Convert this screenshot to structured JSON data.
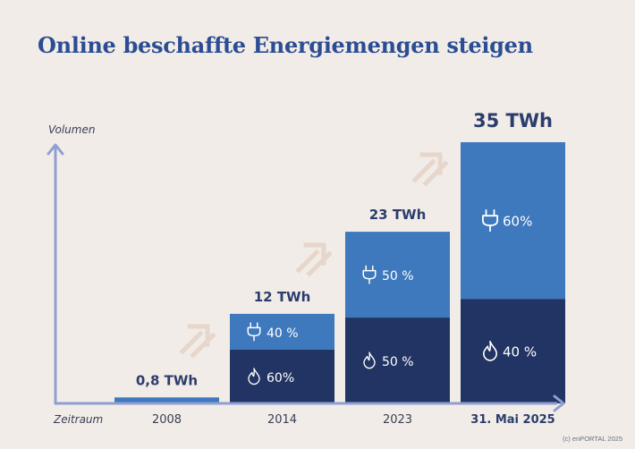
{
  "title": "Online beschaffte Energiemengen steigen",
  "credit": "(c) enPORTAL 2025",
  "colors": {
    "background": "#f1ece7",
    "title": "#2b4d94",
    "axis": "#8f9fd1",
    "power": "#3e78bd",
    "gas": "#213463",
    "value_label": "#2b3d6c",
    "growth_arrow": "#e6d6cb",
    "segment_text": "#ffffff"
  },
  "chart_data": {
    "type": "bar",
    "stacked": true,
    "title": "Online beschaffte Energiemengen steigen",
    "xlabel": "Zeitraum",
    "ylabel": "Volumen",
    "unit": "TWh",
    "ylim": [
      0,
      35
    ],
    "categories": [
      "2008",
      "2014",
      "2023",
      "31. Mai 2025"
    ],
    "totals": [
      0.8,
      12,
      23,
      35
    ],
    "total_labels": [
      "0,8 TWh",
      "12 TWh",
      "23 TWh",
      "35 TWh"
    ],
    "series": [
      {
        "name": "Gas",
        "icon": "flame-icon",
        "share_pct": [
          null,
          60,
          50,
          40
        ],
        "labels": [
          "",
          "60%",
          "50 %",
          "40 %"
        ]
      },
      {
        "name": "Strom",
        "icon": "plug-icon",
        "share_pct": [
          null,
          40,
          50,
          60
        ],
        "labels": [
          "",
          "40  %",
          "50 %",
          "60%"
        ]
      }
    ],
    "growth_arrows": 3,
    "grid": false,
    "legend": "none"
  }
}
